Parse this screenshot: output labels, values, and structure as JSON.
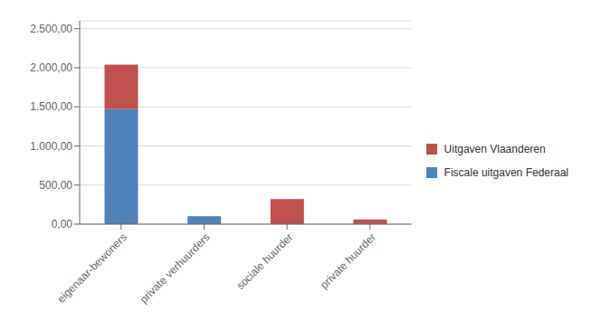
{
  "chart_data": {
    "type": "bar",
    "stacked": true,
    "categories": [
      "eigenaar-bewoners",
      "private verhuurders",
      "sociale huurder",
      "private huurder"
    ],
    "series": [
      {
        "name": "Fiscale uitgaven Federaal",
        "color": "#4f81bd",
        "values": [
          1470,
          100,
          0,
          0
        ]
      },
      {
        "name": "Uitgaven Vlaanderen",
        "color": "#c0504d",
        "values": [
          570,
          0,
          320,
          60
        ]
      }
    ],
    "ylim": [
      0,
      2600
    ],
    "yticks": [
      {
        "value": 0,
        "label": "0,00"
      },
      {
        "value": 500,
        "label": "500,00"
      },
      {
        "value": 1000,
        "label": "1.000,00"
      },
      {
        "value": 1500,
        "label": "1.500,00"
      },
      {
        "value": 2000,
        "label": "2.000,00"
      },
      {
        "value": 2500,
        "label": "2.500,00"
      }
    ],
    "grid": true,
    "legend": "right"
  }
}
